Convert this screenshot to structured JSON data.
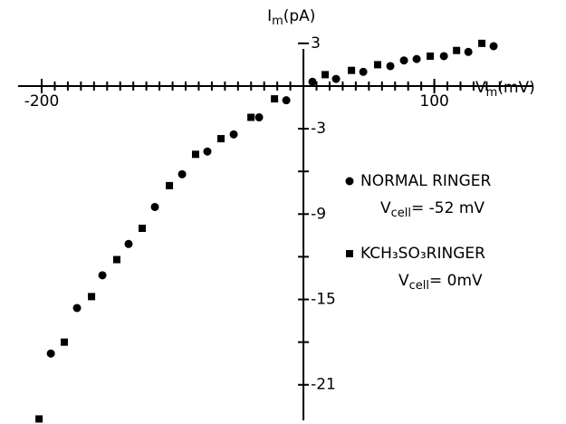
{
  "chart_data": {
    "type": "scatter",
    "x_label": {
      "main": "V",
      "sub": "m",
      "unit": "(mV)"
    },
    "y_label": {
      "main": "I",
      "sub": "m",
      "unit": "(pA)"
    },
    "xlim": [
      -218,
      175
    ],
    "ylim": [
      -23.5,
      3.5
    ],
    "xticks": [
      -200,
      100
    ],
    "xminor": [
      -200,
      -190,
      -180,
      -170,
      -160,
      -150,
      -140,
      -130,
      -120,
      -110,
      -100,
      -90,
      -80,
      -70,
      -60,
      -50,
      -40,
      -30,
      -20,
      -10,
      10,
      20,
      30,
      40,
      50,
      60,
      70,
      80,
      90,
      100,
      110,
      120,
      130,
      140,
      150
    ],
    "yticks": [
      3,
      -3,
      -9,
      -15,
      -21
    ],
    "yminor": [
      -6,
      -12,
      -18
    ],
    "series": [
      {
        "name": "NORMAL RINGER",
        "marker": "circle",
        "color": "#000000",
        "x": [
          -193,
          -173,
          -153.6,
          -133.6,
          -113.5,
          -92.7,
          -73.4,
          -53.3,
          -33.9,
          -13.1,
          6.9,
          24.9,
          45.7,
          66.4,
          76.8,
          86.5,
          107.3,
          126,
          145.3
        ],
        "values": [
          -18.8,
          -15.6,
          -13.3,
          -11.1,
          -8.5,
          -6.2,
          -4.6,
          -3.4,
          -2.2,
          -1.0,
          0.3,
          0.5,
          1.0,
          1.4,
          1.8,
          1.9,
          2.1,
          2.4,
          2.8
        ],
        "annotation": {
          "main": "V",
          "sub": "cell",
          "rest": "= -52 mV"
        }
      },
      {
        "name": "KCH₃SO₃RINGER",
        "marker": "square",
        "color": "#000000",
        "x": [
          -202,
          -182.7,
          -161.9,
          -142.6,
          -123.2,
          -102.4,
          -82.4,
          -63.0,
          -40.1,
          -22.1,
          16.6,
          36.7,
          56.7,
          96.9,
          117,
          136.3
        ],
        "values": [
          -23.4,
          -18.0,
          -14.8,
          -12.2,
          -10.0,
          -7.0,
          -4.8,
          -3.7,
          -2.2,
          -0.9,
          0.8,
          1.1,
          1.5,
          2.1,
          2.5,
          3.0
        ],
        "annotation": {
          "main": "V",
          "sub": "cell",
          "rest": "= 0mV"
        }
      }
    ]
  }
}
